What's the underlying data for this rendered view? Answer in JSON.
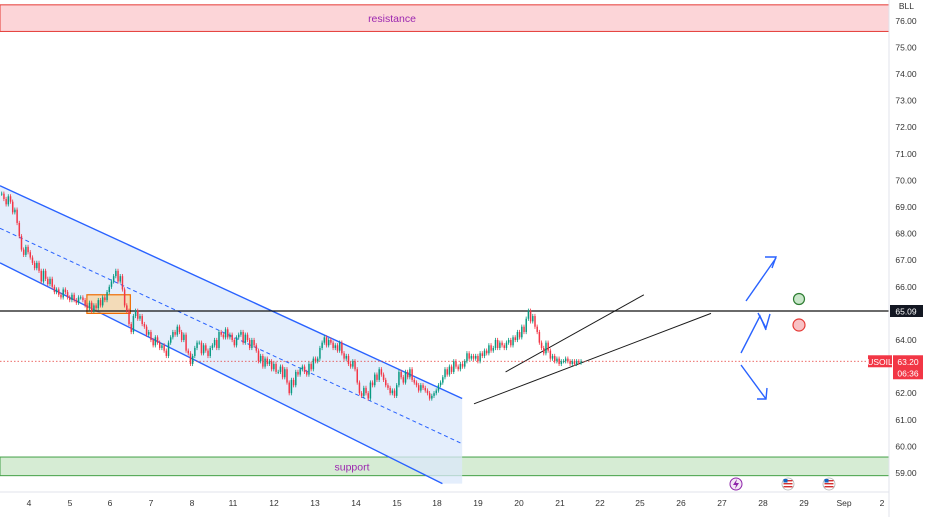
{
  "chart_data": {
    "type": "candlestick",
    "symbol": "USOIL",
    "currency_label": "BLL",
    "y_ticks": [
      59,
      60,
      61,
      62,
      63,
      64,
      65,
      66,
      67,
      68,
      69,
      70,
      71,
      72,
      73,
      74,
      75,
      76
    ],
    "ylim": [
      58.6,
      76.6
    ],
    "x_ticks": [
      "4",
      "5",
      "6",
      "7",
      "8",
      "11",
      "12",
      "13",
      "14",
      "15",
      "18",
      "19",
      "20",
      "21",
      "22",
      "25",
      "26",
      "27",
      "28",
      "29",
      "Sep",
      "2"
    ],
    "price_line": {
      "value": 65.09,
      "label": "65.09"
    },
    "last_price": {
      "value": 63.2,
      "label": "63.20",
      "countdown": "06:36"
    },
    "resistance": {
      "label": "resistance",
      "low": 75.6,
      "high": 76.6
    },
    "support": {
      "label": "support",
      "low": 58.9,
      "high": 59.6
    },
    "descending_channel": {
      "upper": [
        [
          0,
          69.8
        ],
        [
          11.7,
          61.8
        ]
      ],
      "lower": [
        [
          0,
          66.9
        ],
        [
          11.2,
          58.6
        ]
      ],
      "mid": [
        [
          0,
          68.2
        ],
        [
          11.7,
          60.1
        ]
      ]
    },
    "rising_channel": {
      "upper": [
        [
          12.8,
          62.8
        ],
        [
          16.3,
          65.7
        ]
      ],
      "lower": [
        [
          12.0,
          61.6
        ],
        [
          18.0,
          65.0
        ]
      ]
    },
    "consolidation_box": {
      "x": [
        2.2,
        3.3
      ],
      "y": [
        65.0,
        65.7
      ]
    },
    "series": [
      {
        "x": 0.0,
        "values": [
          69.5,
          69.3,
          69.1,
          69.4,
          69.2,
          68.8,
          68.9,
          68.4,
          67.9,
          67.4,
          67.2,
          67.5,
          67.3,
          67.1,
          66.9,
          66.7,
          66.9,
          66.6
        ]
      },
      {
        "x": 1.0,
        "values": [
          66.2,
          66.6,
          66.3,
          66.1,
          66.3,
          66.0,
          65.8,
          65.9,
          65.7,
          65.6,
          65.9,
          65.8,
          65.6,
          65.5,
          65.7,
          65.5,
          65.4,
          65.6
        ]
      },
      {
        "x": 2.0,
        "values": [
          65.6,
          65.5,
          65.3,
          65.2,
          65.4,
          65.1,
          65.3,
          65.2,
          65.5,
          65.3,
          65.6,
          65.5,
          65.8,
          66.0,
          66.2,
          66.4,
          66.6,
          66.2
        ]
      },
      {
        "x": 3.0,
        "values": [
          66.4,
          65.9,
          65.3,
          65.1,
          64.6,
          64.3,
          64.9,
          65.1,
          64.8,
          64.9,
          64.6,
          64.5,
          64.2,
          64.3,
          64.0,
          63.8,
          64.1,
          63.9
        ]
      },
      {
        "x": 4.0,
        "values": [
          63.7,
          63.8,
          63.6,
          63.4,
          63.9,
          64.1,
          64.3,
          64.2,
          64.5,
          64.3,
          64.0,
          64.2,
          63.6,
          63.5,
          63.1,
          63.4,
          63.7,
          63.9
        ]
      },
      {
        "x": 5.0,
        "values": [
          63.9,
          63.5,
          63.8,
          63.6,
          63.4,
          63.7,
          63.8,
          64.0,
          63.7,
          64.3,
          64.2,
          64.1,
          64.4,
          64.1,
          64.2,
          64.0,
          63.8,
          64.1
        ]
      },
      {
        "x": 6.0,
        "values": [
          64.2,
          64.3,
          63.9,
          64.2,
          64.0,
          63.7,
          64.0,
          63.8,
          63.6,
          63.2,
          63.4,
          63.0,
          63.3,
          63.1,
          63.2,
          62.9,
          63.1,
          62.8
        ]
      },
      {
        "x": 7.0,
        "values": [
          62.8,
          63.0,
          62.6,
          62.9,
          62.4,
          62.0,
          62.5,
          62.3,
          62.8,
          62.7,
          62.9,
          63.0,
          62.8,
          62.7,
          63.1,
          62.9,
          63.3,
          63.2
        ]
      },
      {
        "x": 8.0,
        "values": [
          63.3,
          63.7,
          63.9,
          64.1,
          63.8,
          64.0,
          63.9,
          63.7,
          63.8,
          63.6,
          63.9,
          63.5,
          63.3,
          63.4,
          63.1,
          63.0,
          63.2,
          62.9
        ]
      },
      {
        "x": 9.0,
        "values": [
          62.4,
          62.0,
          61.9,
          62.2,
          62.0,
          61.8,
          62.4,
          62.3,
          62.7,
          62.5,
          62.9,
          62.7,
          62.5,
          62.3,
          62.2,
          62.0,
          62.1,
          61.9
        ]
      },
      {
        "x": 10.0,
        "values": [
          62.3,
          62.8,
          62.6,
          62.4,
          62.8,
          62.6,
          62.9,
          62.5,
          62.4,
          62.3,
          62.1,
          62.3,
          62.2,
          62.1,
          62.0,
          61.8,
          61.9,
          62.0
        ]
      },
      {
        "x": 11.0,
        "values": [
          62.1,
          62.3,
          62.4,
          62.6,
          62.9,
          62.7,
          63.0,
          62.8,
          63.2,
          63.0,
          62.9,
          63.1,
          63.0,
          63.2,
          63.5,
          63.3,
          63.4,
          63.3
        ]
      },
      {
        "x": 12.0,
        "values": [
          63.4,
          63.2,
          63.5,
          63.4,
          63.6,
          63.5,
          63.8,
          63.6,
          63.7,
          64.0,
          63.7,
          63.9,
          63.8,
          63.7,
          63.9,
          64.0,
          63.8,
          64.1
        ]
      },
      {
        "x": 13.0,
        "values": [
          64.0,
          64.3,
          64.1,
          64.5,
          64.3,
          64.8,
          65.1,
          64.7,
          64.9,
          64.5,
          64.3,
          63.9,
          63.7,
          63.5,
          63.9,
          63.6,
          63.3,
          63.4
        ]
      },
      {
        "x": 14.0,
        "values": [
          63.2,
          63.3,
          63.1,
          63.2,
          63.2,
          63.3,
          63.2,
          63.1,
          63.2,
          63.1,
          63.2,
          63.15,
          63.2
        ]
      }
    ]
  },
  "scale": {
    "y_ticks_unit": "price"
  }
}
